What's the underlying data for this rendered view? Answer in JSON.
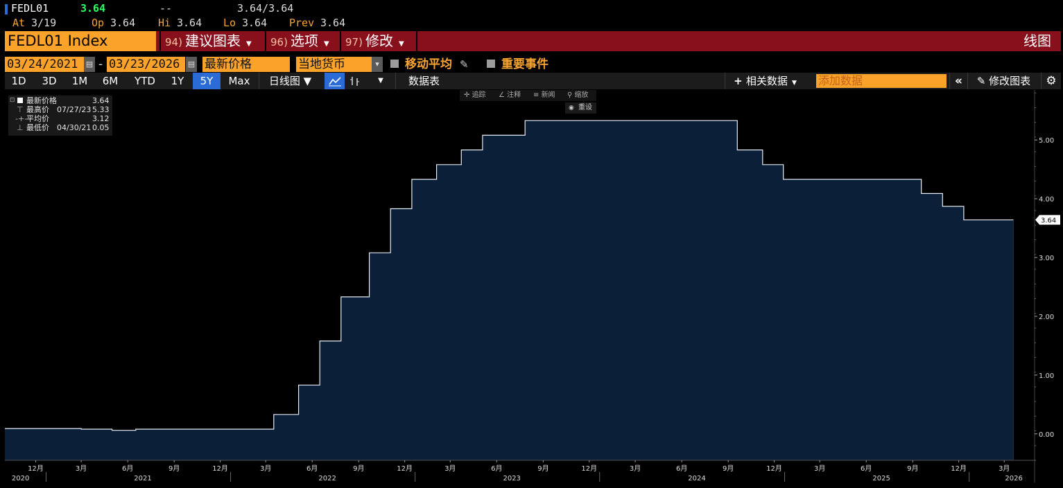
{
  "ticker": {
    "symbol": "FEDL01",
    "last": "3.64",
    "change": "--",
    "bid_ask": "3.64/3.64",
    "at_label": "At",
    "at_value": "3/19",
    "open_label": "Op",
    "open_value": "3.64",
    "high_label": "Hi",
    "high_value": "3.64",
    "low_label": "Lo",
    "low_value": "3.64",
    "prev_label": "Prev",
    "prev_value": "3.64"
  },
  "titlebar": {
    "security": "FEDL01 Index",
    "menus": [
      {
        "num": "94)",
        "label": "建议图表"
      },
      {
        "num": "96)",
        "label": "选项"
      },
      {
        "num": "97)",
        "label": "修改"
      }
    ],
    "chart_type": "线图"
  },
  "date_row": {
    "start_date": "03/24/2021",
    "end_date": "03/23/2026",
    "dash": "-",
    "field": "最新价格",
    "currency": "当地货币",
    "moving_avg": "移动平均",
    "key_events": "重要事件"
  },
  "toolbar": {
    "periods": [
      "1D",
      "3D",
      "1M",
      "6M",
      "YTD",
      "1Y",
      "5Y",
      "Max"
    ],
    "active_period": "5Y",
    "frequency": "日线图 ▼",
    "table": "数据表",
    "related": "相关数据",
    "add_data_placeholder": "添加数据",
    "edit_chart": "修改图表"
  },
  "legend": {
    "rows": [
      {
        "label": "最新价格",
        "date": "",
        "value": "3.64"
      },
      {
        "label": "最高价",
        "date": "07/27/23",
        "value": "5.33"
      },
      {
        "label": "平均价",
        "date": "",
        "value": "3.12"
      },
      {
        "label": "最低价",
        "date": "04/30/21",
        "value": "0.05"
      }
    ]
  },
  "chart_tools": {
    "track": "追踪",
    "annotate": "注释",
    "news": "新闻",
    "zoom": "缩放",
    "reset": "重设"
  },
  "colors": {
    "accent_orange": "#fba22a",
    "title_red": "#88101c",
    "area_fill": "#0b1f38",
    "line": "#e8eef5",
    "active_blue": "#2a6bd6"
  },
  "chart_data": {
    "type": "area",
    "series_name": "FEDL01 Index",
    "x_start": "2020-10-01",
    "x_end": "2026-04-30",
    "ylim": [
      -0.45,
      5.85
    ],
    "yticks": [
      0.0,
      1.0,
      2.0,
      3.0,
      4.0,
      5.0
    ],
    "ytick_labels": [
      "0.00",
      "1.00",
      "2.00",
      "3.00",
      "4.00",
      "5.00"
    ],
    "last_value_label": "3.64",
    "x": [
      "2020-10-01",
      "2021-01-15",
      "2021-03-01",
      "2021-05-01",
      "2021-06-17",
      "2021-09-01",
      "2021-12-15",
      "2022-03-17",
      "2022-05-05",
      "2022-06-16",
      "2022-07-28",
      "2022-09-22",
      "2022-11-03",
      "2022-12-15",
      "2023-02-02",
      "2023-03-23",
      "2023-05-04",
      "2023-07-27",
      "2024-09-19",
      "2024-11-08",
      "2024-12-19",
      "2025-09-18",
      "2025-10-30",
      "2025-12-11",
      "2026-03-19"
    ],
    "y": [
      0.09,
      0.09,
      0.08,
      0.06,
      0.08,
      0.08,
      0.08,
      0.33,
      0.83,
      1.58,
      2.33,
      3.08,
      3.83,
      4.33,
      4.58,
      4.83,
      5.08,
      5.33,
      4.83,
      4.58,
      4.33,
      4.09,
      3.87,
      3.64,
      3.64
    ],
    "x_month_ticks": [
      {
        "date": "2020-12-01",
        "label": "12月"
      },
      {
        "date": "2021-03-01",
        "label": "3月"
      },
      {
        "date": "2021-06-01",
        "label": "6月"
      },
      {
        "date": "2021-09-01",
        "label": "9月"
      },
      {
        "date": "2021-12-01",
        "label": "12月"
      },
      {
        "date": "2022-03-01",
        "label": "3月"
      },
      {
        "date": "2022-06-01",
        "label": "6月"
      },
      {
        "date": "2022-09-01",
        "label": "9月"
      },
      {
        "date": "2022-12-01",
        "label": "12月"
      },
      {
        "date": "2023-03-01",
        "label": "3月"
      },
      {
        "date": "2023-06-01",
        "label": "6月"
      },
      {
        "date": "2023-09-01",
        "label": "9月"
      },
      {
        "date": "2023-12-01",
        "label": "12月"
      },
      {
        "date": "2024-03-01",
        "label": "3月"
      },
      {
        "date": "2024-06-01",
        "label": "6月"
      },
      {
        "date": "2024-09-01",
        "label": "9月"
      },
      {
        "date": "2024-12-01",
        "label": "12月"
      },
      {
        "date": "2025-03-01",
        "label": "3月"
      },
      {
        "date": "2025-06-01",
        "label": "6月"
      },
      {
        "date": "2025-09-01",
        "label": "9月"
      },
      {
        "date": "2025-12-01",
        "label": "12月"
      },
      {
        "date": "2026-03-01",
        "label": "3月"
      }
    ],
    "x_year_labels": [
      {
        "date": "2020-11-01",
        "label": "2020"
      },
      {
        "date": "2021-07-01",
        "label": "2021"
      },
      {
        "date": "2022-07-01",
        "label": "2022"
      },
      {
        "date": "2023-07-01",
        "label": "2023"
      },
      {
        "date": "2024-07-01",
        "label": "2024"
      },
      {
        "date": "2025-07-01",
        "label": "2025"
      },
      {
        "date": "2026-03-20",
        "label": "2026"
      }
    ]
  }
}
